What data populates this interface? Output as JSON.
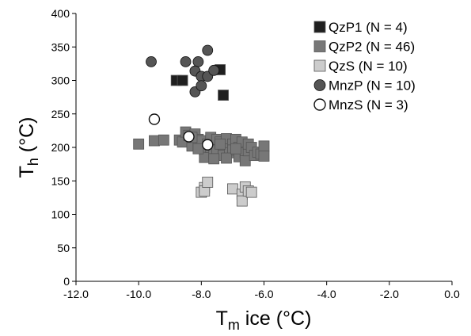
{
  "chart_data": {
    "type": "scatter",
    "xlabel": {
      "main": "T",
      "sub": "m",
      "rest": " ice (°C)"
    },
    "ylabel": {
      "main": "T",
      "sub": "h",
      "rest": " (°C)"
    },
    "xlim": [
      -12.0,
      0.0
    ],
    "ylim": [
      0,
      400
    ],
    "x_ticks": [
      "-12.0",
      "-10.0",
      "-8.0",
      "-6.0",
      "-4.0",
      "-2.0",
      "0.0"
    ],
    "y_ticks": [
      "0",
      "50",
      "100",
      "150",
      "200",
      "250",
      "300",
      "350",
      "400"
    ],
    "grid": false,
    "legend_position": "top-right",
    "series": [
      {
        "name": "QzP1 (N = 4)",
        "marker": "square",
        "fill": "#1f1f1f",
        "points": [
          [
            -8.8,
            300
          ],
          [
            -8.6,
            300
          ],
          [
            -7.4,
            316
          ],
          [
            -7.3,
            278
          ]
        ]
      },
      {
        "name": "QzP2 (N = 46)",
        "marker": "square",
        "fill": "#777777",
        "points": [
          [
            -10.0,
            205
          ],
          [
            -9.5,
            210
          ],
          [
            -9.2,
            211
          ],
          [
            -8.7,
            211
          ],
          [
            -8.6,
            208
          ],
          [
            -8.5,
            223
          ],
          [
            -8.4,
            218
          ],
          [
            -8.3,
            202
          ],
          [
            -8.2,
            220
          ],
          [
            -8.1,
            212
          ],
          [
            -8.0,
            210
          ],
          [
            -7.9,
            196
          ],
          [
            -7.9,
            185
          ],
          [
            -7.8,
            205
          ],
          [
            -7.7,
            215
          ],
          [
            -7.7,
            200
          ],
          [
            -7.6,
            190
          ],
          [
            -7.5,
            212
          ],
          [
            -7.5,
            196
          ],
          [
            -7.4,
            208
          ],
          [
            -7.3,
            200
          ],
          [
            -7.3,
            188
          ],
          [
            -7.2,
            213
          ],
          [
            -7.1,
            192
          ],
          [
            -7.0,
            205
          ],
          [
            -7.0,
            196
          ],
          [
            -6.9,
            212
          ],
          [
            -6.8,
            186
          ],
          [
            -6.8,
            200
          ],
          [
            -6.7,
            208
          ],
          [
            -6.6,
            192
          ],
          [
            -6.6,
            180
          ],
          [
            -6.5,
            195
          ],
          [
            -6.5,
            205
          ],
          [
            -6.4,
            200
          ],
          [
            -6.3,
            188
          ],
          [
            -6.2,
            193
          ],
          [
            -6.1,
            190
          ],
          [
            -6.0,
            202
          ],
          [
            -6.0,
            187
          ],
          [
            -7.6,
            183
          ],
          [
            -7.4,
            205
          ],
          [
            -8.3,
            215
          ],
          [
            -8.1,
            198
          ],
          [
            -7.2,
            184
          ],
          [
            -6.9,
            198
          ]
        ]
      },
      {
        "name": "QzS (N = 10)",
        "marker": "square",
        "fill": "#cccccc",
        "points": [
          [
            -8.0,
            133
          ],
          [
            -7.9,
            140
          ],
          [
            -7.9,
            135
          ],
          [
            -7.8,
            148
          ],
          [
            -7.0,
            138
          ],
          [
            -6.7,
            130
          ],
          [
            -6.7,
            120
          ],
          [
            -6.6,
            141
          ],
          [
            -6.5,
            135
          ],
          [
            -6.4,
            133
          ]
        ]
      },
      {
        "name": "MnzP (N = 10)",
        "marker": "circle",
        "fill": "#555555",
        "points": [
          [
            -9.6,
            328
          ],
          [
            -8.5,
            328
          ],
          [
            -8.1,
            328
          ],
          [
            -7.8,
            345
          ],
          [
            -8.2,
            314
          ],
          [
            -8.0,
            306
          ],
          [
            -7.8,
            306
          ],
          [
            -7.6,
            315
          ],
          [
            -8.2,
            283
          ],
          [
            -8.0,
            292
          ]
        ]
      },
      {
        "name": "MnzS (N = 3)",
        "marker": "circle",
        "fill": "#ffffff",
        "points": [
          [
            -9.5,
            242
          ],
          [
            -8.4,
            216
          ],
          [
            -7.8,
            204
          ]
        ]
      }
    ]
  }
}
